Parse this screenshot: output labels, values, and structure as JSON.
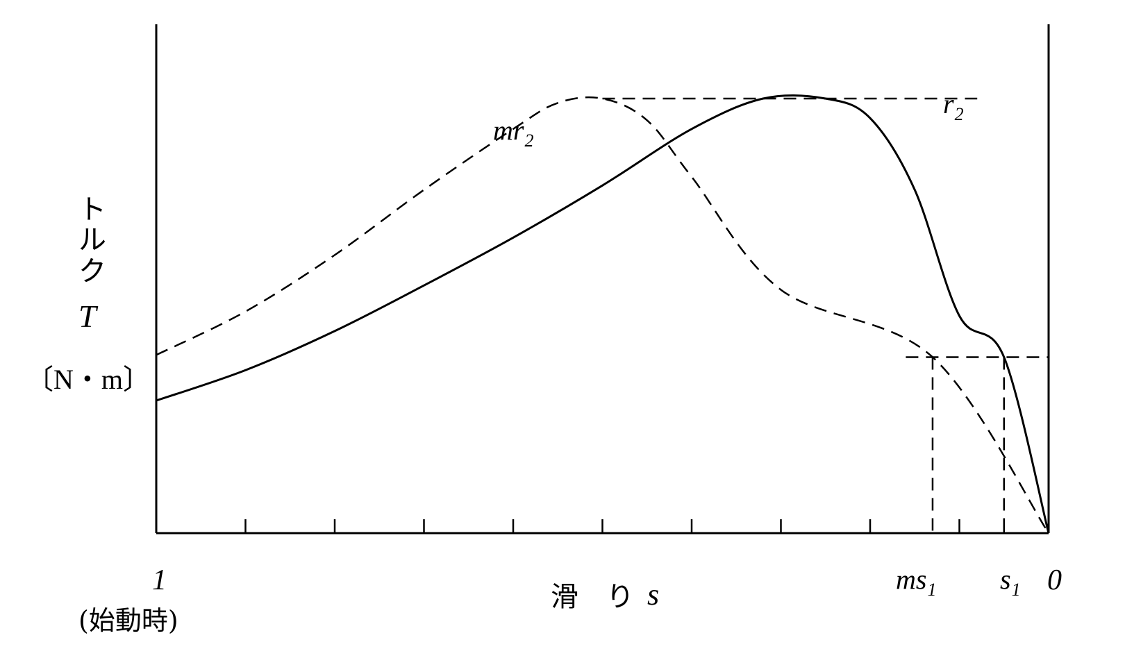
{
  "chart_data": {
    "type": "line",
    "x_axis": {
      "label_text": "滑　り",
      "label_symbol": "s",
      "start_label": "1",
      "start_note": "(始動時)",
      "end_label": "0",
      "direction": "decreasing",
      "range": [
        1,
        0
      ],
      "minor_ticks": [
        0.9,
        0.8,
        0.7,
        0.6,
        0.5,
        0.4,
        0.3,
        0.2,
        0.1,
        0.05
      ],
      "marked_points": [
        {
          "value": 0.13,
          "base": "ms",
          "sub": "1"
        },
        {
          "value": 0.05,
          "base": "s",
          "sub": "1"
        }
      ]
    },
    "y_axis": {
      "label_chars": [
        "ト",
        "ル",
        "ク"
      ],
      "label_symbol": "T",
      "unit": "〔N・m〕",
      "range": [
        0,
        1.12
      ]
    },
    "grid": false,
    "legend": "none",
    "series": [
      {
        "name": "r2",
        "name_base": "r",
        "name_sub": "2",
        "style": "solid",
        "color": "#000000",
        "points": [
          [
            1.0,
            0.305
          ],
          [
            0.9,
            0.375
          ],
          [
            0.8,
            0.465
          ],
          [
            0.7,
            0.57
          ],
          [
            0.6,
            0.68
          ],
          [
            0.5,
            0.8
          ],
          [
            0.4,
            0.93
          ],
          [
            0.32,
            1.0
          ],
          [
            0.25,
            1.0
          ],
          [
            0.2,
            0.955
          ],
          [
            0.15,
            0.79
          ],
          [
            0.1,
            0.5
          ],
          [
            0.05,
            0.405
          ],
          [
            0.0,
            0.0
          ]
        ]
      },
      {
        "name": "mr2",
        "name_base": "mr",
        "name_sub": "2",
        "style": "dashed",
        "color": "#000000",
        "points": [
          [
            1.0,
            0.41
          ],
          [
            0.9,
            0.51
          ],
          [
            0.8,
            0.64
          ],
          [
            0.7,
            0.79
          ],
          [
            0.6,
            0.93
          ],
          [
            0.55,
            0.99
          ],
          [
            0.5,
            1.0
          ],
          [
            0.45,
            0.95
          ],
          [
            0.4,
            0.82
          ],
          [
            0.3,
            0.56
          ],
          [
            0.2,
            0.33
          ],
          [
            0.13,
            0.405
          ],
          [
            0.05,
            0.155
          ],
          [
            0.0,
            0.0
          ]
        ]
      }
    ],
    "reference_lines": [
      {
        "kind": "horizontal",
        "name": "max-torque",
        "y": 1.0,
        "from_x": 0.5,
        "to_x": 0.08
      },
      {
        "kind": "horizontal",
        "name": "load-torque",
        "y": 0.405,
        "from_x": 0.16,
        "to_x": 0.0
      },
      {
        "kind": "vertical",
        "name": "ms1-drop",
        "x": 0.13
      },
      {
        "kind": "vertical",
        "name": "s1-drop",
        "x": 0.05
      }
    ]
  }
}
